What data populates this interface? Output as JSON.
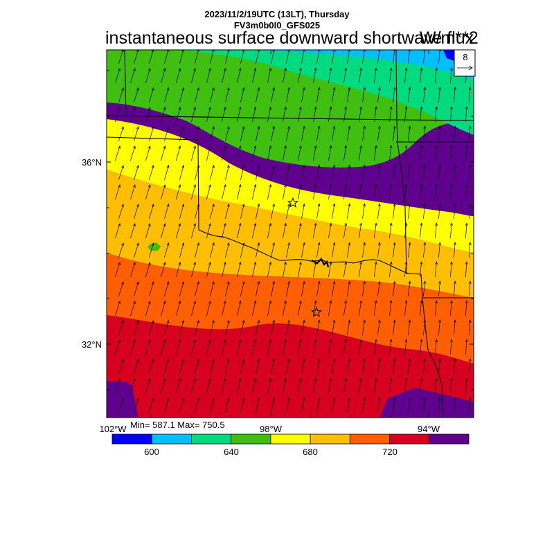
{
  "header": {
    "line1": "2023/11/2/19UTC (13LT), Thursday",
    "line2": "FV3m0b0l0_GFS025",
    "field_name": "instantaneous surface downward shortwave flux",
    "units": "W/m**2"
  },
  "reference_vector": {
    "label": "8"
  },
  "axes": {
    "lat_labels": [
      "36°N",
      "32°N"
    ],
    "lon_labels": [
      "102°W",
      "98°W",
      "94°W"
    ]
  },
  "stats": {
    "text": "Min= 587.1 Max= 750.5"
  },
  "colorbar": {
    "colors": [
      "#0000ff",
      "#00bfff",
      "#00db7f",
      "#3fbf10",
      "#ffff00",
      "#ffbf00",
      "#ff5f00",
      "#d7001f",
      "#5f008f"
    ],
    "labels": [
      "600",
      "640",
      "680",
      "720"
    ]
  },
  "colors": {
    "level_600": "#0000ff",
    "level_610": "#00bfff",
    "level_620": "#00db7f",
    "level_640": "#3fbf10",
    "level_660": "#ffff00",
    "level_680": "#ffbf00",
    "level_700": "#ff5f00",
    "level_720": "#d7001f",
    "level_740": "#5f008f"
  },
  "markers": [
    {
      "name": "star-marker-north"
    },
    {
      "name": "star-marker-south"
    }
  ]
}
